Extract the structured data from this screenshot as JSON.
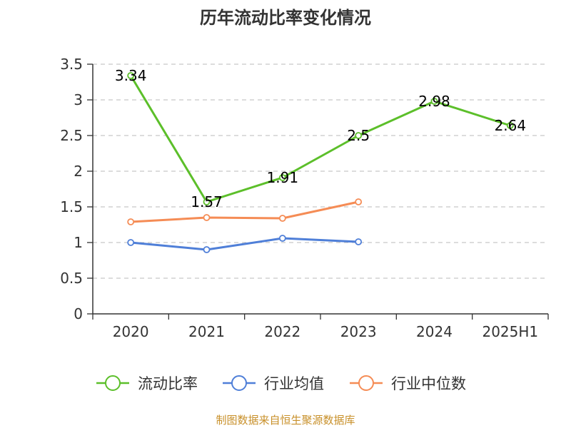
{
  "chart_data": {
    "type": "line",
    "title": "历年流动比率变化情况",
    "categories": [
      "2020",
      "2021",
      "2022",
      "2023",
      "2024",
      "2025H1"
    ],
    "ylim": [
      0,
      3.5
    ],
    "yticks": [
      "0",
      "0.5",
      "1",
      "1.5",
      "2",
      "2.5",
      "3",
      "3.5"
    ],
    "grid": true,
    "legend_position": "bottom",
    "series": [
      {
        "name": "流动比率",
        "color": "#5cbf2a",
        "values": [
          3.34,
          1.57,
          1.91,
          2.5,
          2.98,
          2.64
        ],
        "labels": [
          "3.34",
          "1.57",
          "1.91",
          "2.5",
          "2.98",
          "2.64"
        ]
      },
      {
        "name": "行业均值",
        "color": "#4f7fd8",
        "values": [
          1.0,
          0.9,
          1.06,
          1.01,
          null,
          null
        ]
      },
      {
        "name": "行业中位数",
        "color": "#f58c55",
        "values": [
          1.29,
          1.35,
          1.34,
          1.57,
          null,
          null
        ]
      }
    ]
  },
  "source": "制图数据来自恒生聚源数据库"
}
